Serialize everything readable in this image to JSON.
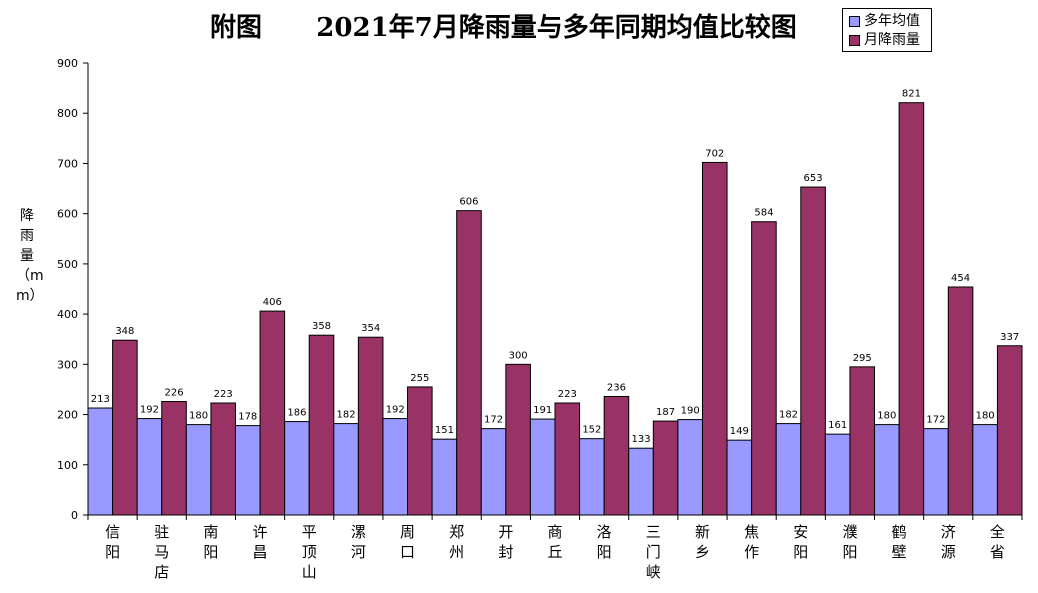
{
  "chart_data": {
    "type": "bar",
    "title": "附图      2021年7月降雨量与多年同期均值比较图",
    "ylabel": "降雨量（mm）",
    "xlabel": "",
    "ylim": [
      0,
      900
    ],
    "yticks": [
      "0",
      "100",
      "200",
      "300",
      "400",
      "500",
      "600",
      "700",
      "800",
      "900"
    ],
    "categories": [
      "信阳",
      "驻马店",
      "南阳",
      "许昌",
      "平顶山",
      "漯河",
      "周口",
      "郑州",
      "开封",
      "商丘",
      "洛阳",
      "三门峡",
      "新乡",
      "焦作",
      "安阳",
      "濮阳",
      "鹤壁",
      "济源",
      "全省"
    ],
    "series": [
      {
        "name": "多年均值",
        "color": "#9999ff",
        "values": [
          213,
          192,
          180,
          178,
          186,
          182,
          192,
          151,
          172,
          191,
          152,
          133,
          190,
          149,
          182,
          161,
          180,
          172,
          180
        ]
      },
      {
        "name": "月降雨量",
        "color": "#993366",
        "values": [
          348,
          226,
          223,
          406,
          358,
          354,
          255,
          606,
          300,
          223,
          236,
          187,
          702,
          584,
          653,
          295,
          821,
          454,
          337
        ]
      }
    ],
    "legend_position": "top-right",
    "grid": false
  }
}
